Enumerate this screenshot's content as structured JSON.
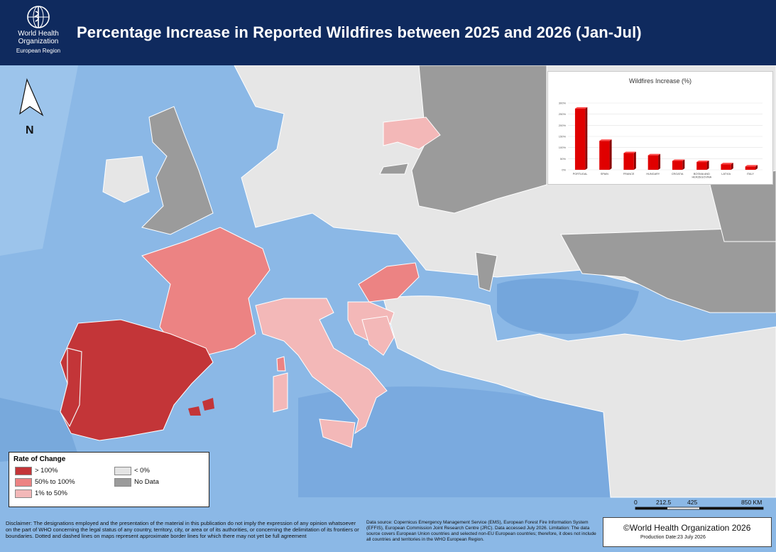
{
  "header": {
    "org_line1": "World Health",
    "org_line2": "Organization",
    "region": "European Region",
    "title": "Percentage Increase in Reported Wildfires between 2025 and 2026 (Jan-Jul)"
  },
  "north_label": "N",
  "colors": {
    "header_bg": "#0f2a5e",
    "over_100": "#c33538",
    "50_to_100": "#ec8383",
    "1_to_50": "#f3b8b8",
    "below_0": "#e4e4e4",
    "no_data": "#9b9b9b",
    "sea": "#8bb8e6"
  },
  "legend": {
    "title": "Rate of Change",
    "items": [
      {
        "label": "> 100%",
        "color": "#c33538"
      },
      {
        "label": "50% to 100%",
        "color": "#ec8383"
      },
      {
        "label": "1% to 50%",
        "color": "#f3b8b8"
      },
      {
        "label": "< 0%",
        "color": "#e4e4e4"
      },
      {
        "label": "No Data",
        "color": "#9b9b9b"
      }
    ]
  },
  "chart_data": {
    "type": "bar",
    "title": "Wildfires Increase (%)",
    "categories": [
      "PORTUGAL",
      "SPAIN",
      "FRANCE",
      "HUNGARY",
      "CROATIA",
      "BOSNIA AND HERZEGOVINA",
      "LATVIA",
      "ITALY"
    ],
    "values": [
      275,
      130,
      75,
      65,
      40,
      35,
      25,
      15
    ],
    "ylim": [
      0,
      300
    ],
    "yticks": [
      "0%",
      "50%",
      "100%",
      "150%",
      "200%",
      "250%",
      "300%"
    ],
    "xlabel": "",
    "ylabel": "",
    "grid": true,
    "bar_color": "#e00000"
  },
  "scale": {
    "ticks": [
      "0",
      "212.5",
      "425",
      "850 KM"
    ]
  },
  "disclaimer": "Disclaimer: The designations employed and the presentation of the material in this publication do not imply the expression of any opinion whatsoever on the part of WHO concerning the legal status of any country, territory, city, or area or of its authorities, or concerning the delimitation of its frontiers or boundaries. Dotted and dashed lines on maps represent approximate border lines for which there may not yet be full agreement",
  "source": "Data source: Copernicus Emergency Management Service (EMS), European Forest Fire Information System (EFFIS), European Commission Joint Research Centre (JRC). Data accessed July 2026. Limitation: The data source covers European Union countries and selected non-EU European countries; therefore, it does not include all countries and territories in the WHO European Region.",
  "copyright": "©World Health Organization 2026",
  "production_date": "Production Date:23 July 2026"
}
